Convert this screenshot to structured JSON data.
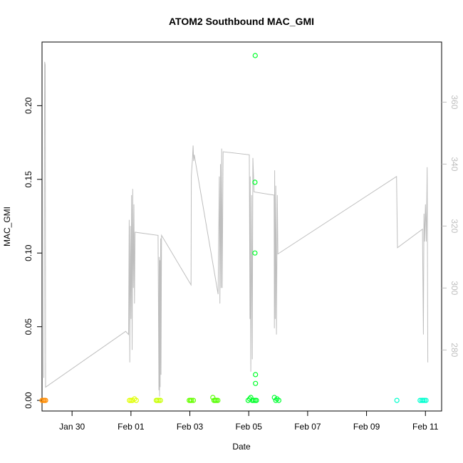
{
  "chart_data": {
    "type": "scatter",
    "title": "ATOM2 Southbound MAC_GMI",
    "xlabel": "Date",
    "ylabel": "MAC_GMI",
    "x_ticks": [
      {
        "day": 2,
        "label": "Jan 30"
      },
      {
        "day": 4,
        "label": "Feb 01"
      },
      {
        "day": 6,
        "label": "Feb 03"
      },
      {
        "day": 8,
        "label": "Feb 05"
      },
      {
        "day": 10,
        "label": "Feb 07"
      },
      {
        "day": 12,
        "label": "Feb 09"
      },
      {
        "day": 14,
        "label": "Feb 11"
      }
    ],
    "xlim": [
      0.98,
      14.55
    ],
    "ylim": [
      -0.0072,
      0.2432
    ],
    "y_ticks": [
      0.0,
      0.05,
      0.1,
      0.15,
      0.2
    ],
    "y_tick_labels": [
      "0.00",
      "0.05",
      "0.10",
      "0.15",
      "0.20"
    ],
    "y2lim": [
      260.3,
      379.4
    ],
    "y2_ticks": [
      280,
      300,
      320,
      340,
      360
    ],
    "y2_tick_labels": [
      "280",
      "300",
      "320",
      "340",
      "360"
    ],
    "y2_color": "#bebebe",
    "series": [
      {
        "kind": "points",
        "clusters": [
          {
            "day": 1.03,
            "color": "#ff8c00",
            "points": [
              [
                0.98,
                0.0
              ],
              [
                1.02,
                0.0
              ],
              [
                1.06,
                0.0
              ],
              [
                1.1,
                0.0
              ]
            ]
          },
          {
            "day": 4.02,
            "color": "#e0ff00",
            "points": [
              [
                3.95,
                0.0
              ],
              [
                4.0,
                0.0
              ],
              [
                4.05,
                0.0
              ],
              [
                4.12,
                0.001
              ],
              [
                4.18,
                0.0
              ]
            ]
          },
          {
            "day": 4.92,
            "color": "#c8ff00",
            "points": [
              [
                4.86,
                0.0
              ],
              [
                4.9,
                0.0
              ],
              [
                4.95,
                0.0
              ],
              [
                5.0,
                0.0
              ]
            ]
          },
          {
            "day": 6.05,
            "color": "#66ff00",
            "points": [
              [
                5.98,
                0.0
              ],
              [
                6.02,
                0.0
              ],
              [
                6.06,
                0.0
              ],
              [
                6.12,
                0.0
              ]
            ]
          },
          {
            "day": 6.85,
            "color": "#55ff00",
            "points": [
              [
                6.78,
                0.002
              ],
              [
                6.82,
                0.0
              ],
              [
                6.86,
                0.0
              ],
              [
                6.9,
                0.0
              ],
              [
                6.95,
                0.0
              ]
            ]
          },
          {
            "day": 8.1,
            "color": "#00ff2a",
            "points": [
              [
                7.98,
                0.0
              ],
              [
                8.03,
                0.001
              ],
              [
                8.07,
                0.002
              ],
              [
                8.12,
                0.0
              ],
              [
                8.17,
                0.0
              ],
              [
                8.22,
                0.0
              ],
              [
                8.26,
                0.0
              ],
              [
                8.23,
                0.0115
              ],
              [
                8.23,
                0.0175
              ],
              [
                8.21,
                0.1
              ],
              [
                8.21,
                0.148
              ],
              [
                8.22,
                0.234
              ]
            ]
          },
          {
            "day": 8.95,
            "color": "#00ff33",
            "points": [
              [
                8.87,
                0.002
              ],
              [
                8.92,
                0.0
              ],
              [
                8.96,
                0.001
              ],
              [
                9.02,
                0.0
              ]
            ]
          },
          {
            "day": 13.03,
            "color": "#00ffcc",
            "points": [
              [
                13.03,
                0.0
              ]
            ]
          },
          {
            "day": 13.95,
            "color": "#00ffd0",
            "points": [
              [
                13.82,
                0.0
              ],
              [
                13.88,
                0.0
              ],
              [
                13.92,
                0.0
              ],
              [
                13.97,
                0.0
              ],
              [
                14.02,
                0.0
              ]
            ]
          }
        ]
      },
      {
        "kind": "line",
        "axis": "right",
        "color": "#bebebe",
        "points": [
          [
            1.04,
            271
          ],
          [
            1.07,
            373
          ],
          [
            1.09,
            372
          ],
          [
            1.1,
            268
          ],
          [
            3.82,
            286
          ],
          [
            3.92,
            285
          ],
          [
            3.94,
            322
          ],
          [
            3.96,
            276
          ],
          [
            3.98,
            320
          ],
          [
            4.0,
            290
          ],
          [
            4.02,
            330
          ],
          [
            4.04,
            280
          ],
          [
            4.06,
            332
          ],
          [
            4.08,
            300
          ],
          [
            4.1,
            327
          ],
          [
            4.12,
            295
          ],
          [
            4.14,
            318
          ],
          [
            4.92,
            317
          ],
          [
            4.95,
            267
          ],
          [
            4.96,
            310
          ],
          [
            4.97,
            265
          ],
          [
            4.98,
            309
          ],
          [
            4.99,
            268
          ],
          [
            5.01,
            316
          ],
          [
            5.02,
            272
          ],
          [
            5.04,
            317
          ],
          [
            6.04,
            301
          ],
          [
            6.05,
            336
          ],
          [
            6.07,
            339
          ],
          [
            6.09,
            342
          ],
          [
            6.11,
            346
          ],
          [
            6.13,
            341
          ],
          [
            6.15,
            343
          ],
          [
            6.96,
            298
          ],
          [
            7.0,
            336
          ],
          [
            7.02,
            295
          ],
          [
            7.04,
            340
          ],
          [
            7.06,
            300
          ],
          [
            7.08,
            345
          ],
          [
            7.1,
            300
          ],
          [
            7.13,
            344
          ],
          [
            8.02,
            343
          ],
          [
            8.04,
            290
          ],
          [
            8.05,
            336
          ],
          [
            8.07,
            273
          ],
          [
            8.1,
            330
          ],
          [
            8.12,
            277
          ],
          [
            8.14,
            342
          ],
          [
            8.18,
            331
          ],
          [
            8.86,
            330
          ],
          [
            8.87,
            287
          ],
          [
            8.88,
            338
          ],
          [
            8.9,
            290
          ],
          [
            8.92,
            333
          ],
          [
            8.94,
            285
          ],
          [
            8.97,
            330
          ],
          [
            8.99,
            311
          ],
          [
            13.02,
            336
          ],
          [
            13.05,
            313
          ],
          [
            13.9,
            319
          ],
          [
            13.93,
            285
          ],
          [
            13.95,
            324
          ],
          [
            13.97,
            315
          ],
          [
            14.0,
            327
          ],
          [
            14.03,
            315
          ],
          [
            14.06,
            339
          ],
          [
            14.08,
            276
          ]
        ]
      }
    ],
    "grid": false,
    "legend": "none"
  }
}
